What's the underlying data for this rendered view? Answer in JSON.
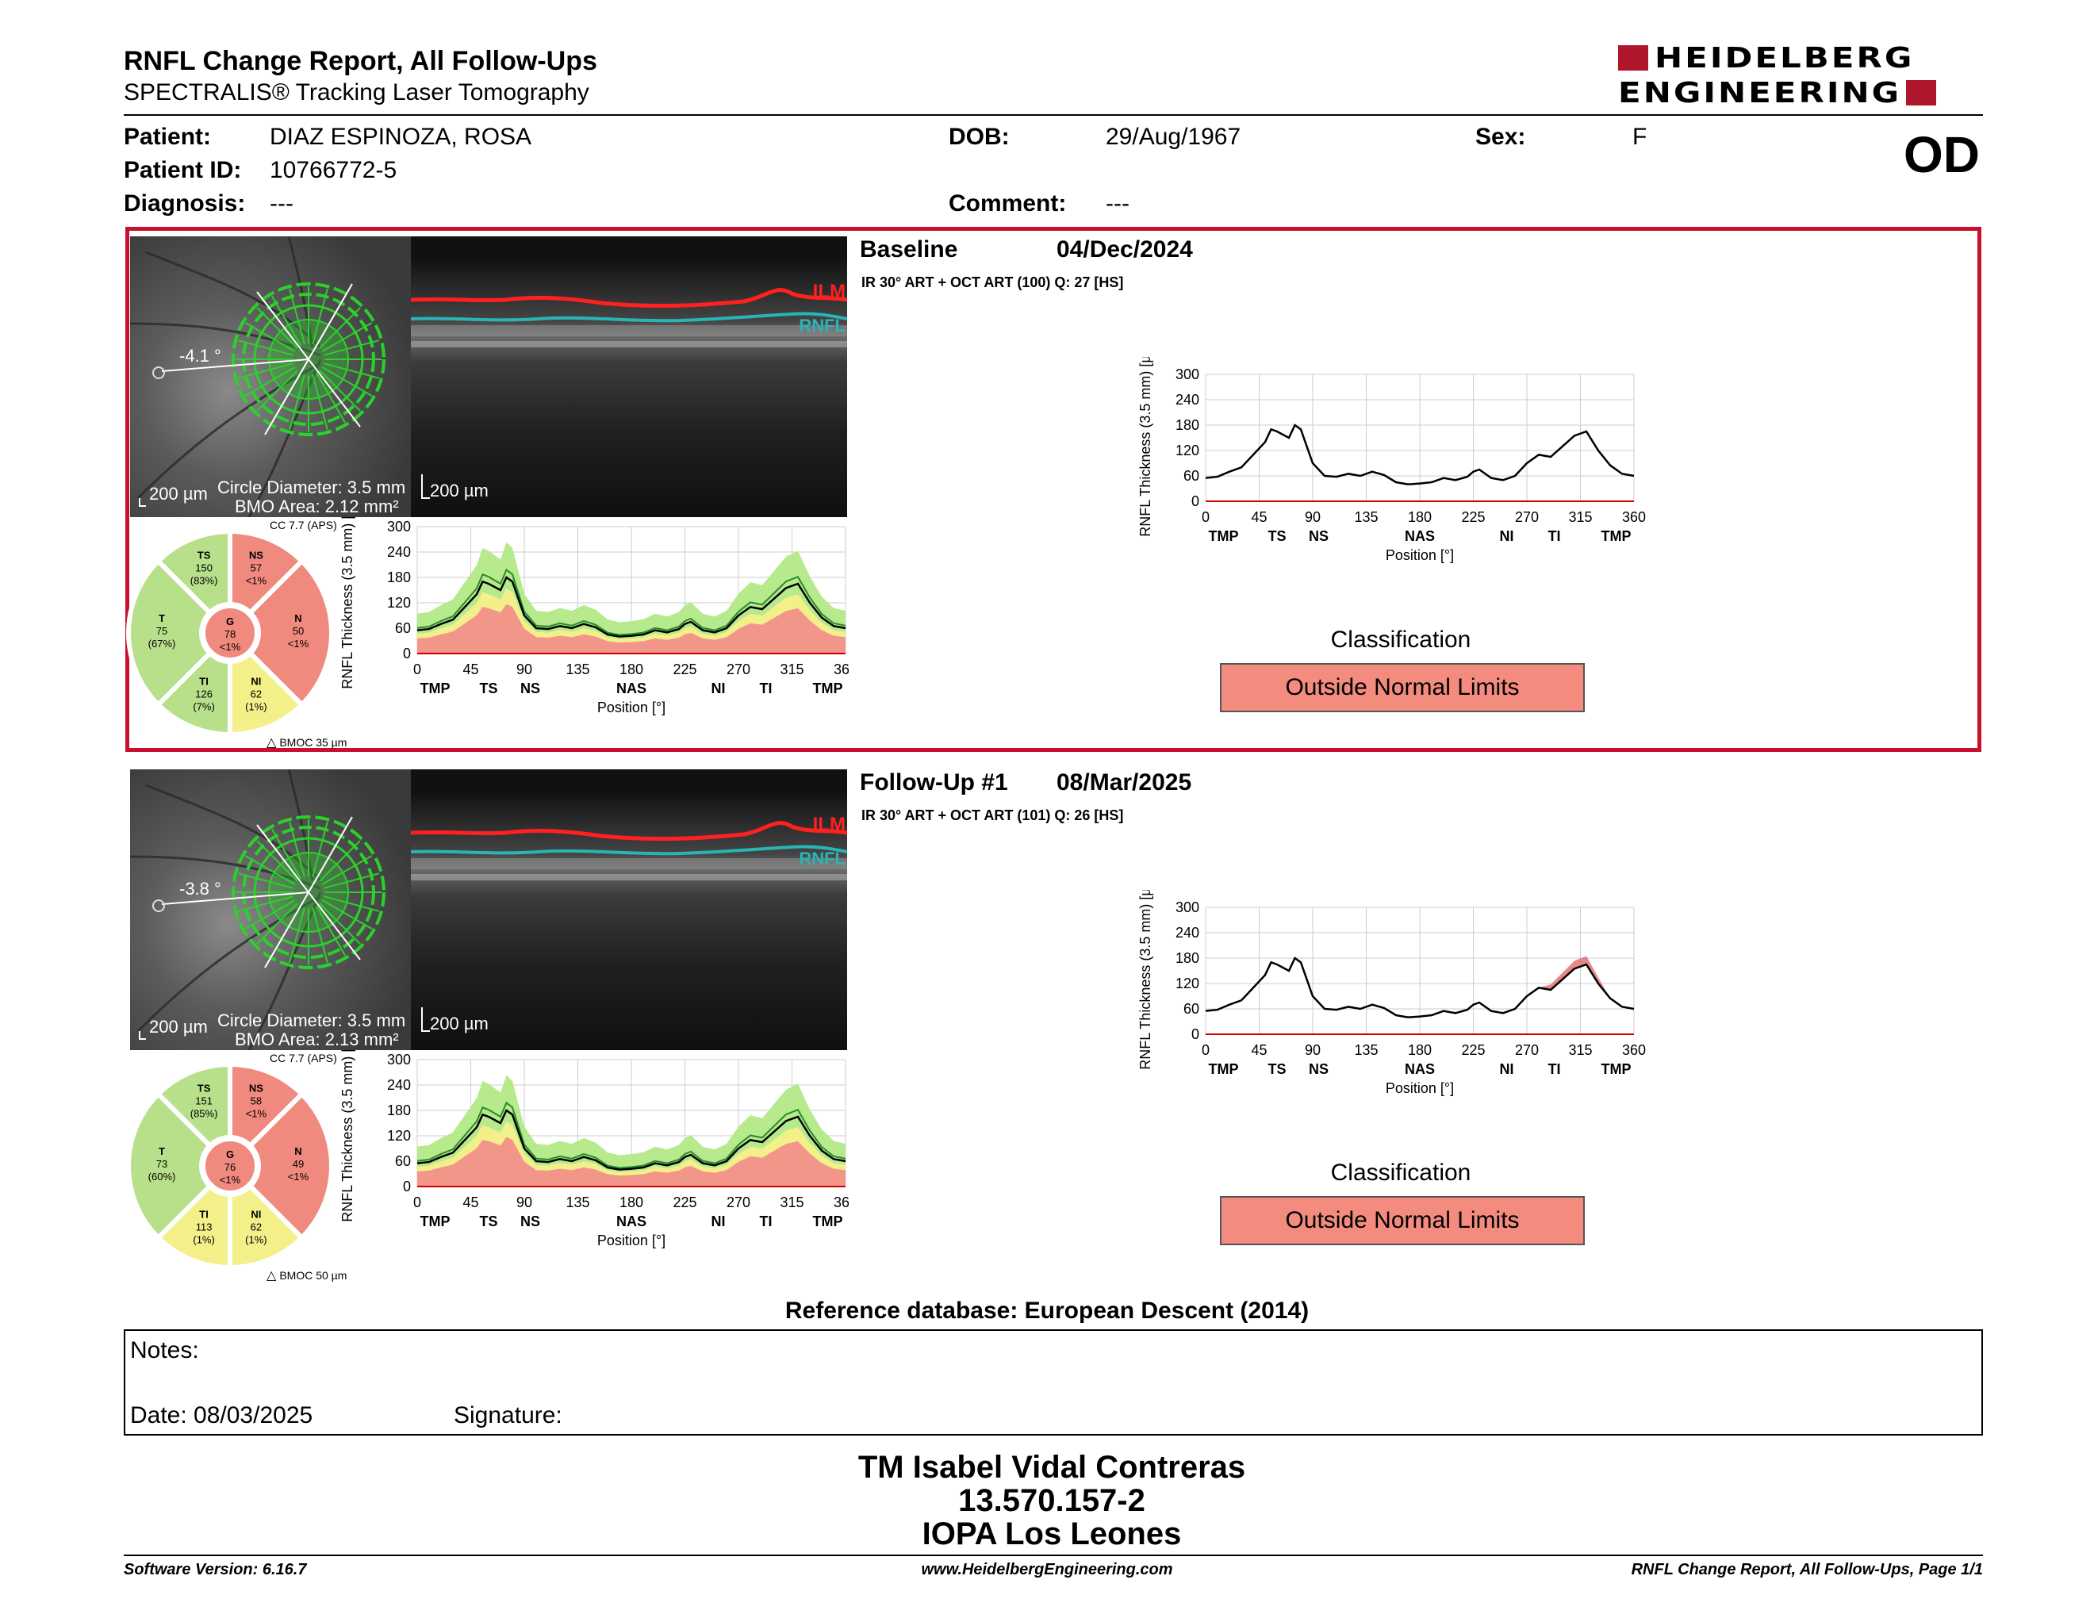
{
  "header": {
    "title": "RNFL Change Report, All Follow-Ups",
    "subtitle": "SPECTRALIS® Tracking Laser Tomography",
    "logo_line1": "HEIDELBERG",
    "logo_line2": "ENGINEERING",
    "eye": "OD"
  },
  "patient": {
    "patient_label": "Patient:",
    "patient_value": "DIAZ ESPINOZA, ROSA",
    "dob_label": "DOB:",
    "dob_value": "29/Aug/1967",
    "sex_label": "Sex:",
    "sex_value": "F",
    "id_label": "Patient ID:",
    "id_value": "10766772-5",
    "diagnosis_label": "Diagnosis:",
    "diagnosis_value": "---",
    "comment_label": "Comment:",
    "comment_value": "---"
  },
  "exams": [
    {
      "name": "Baseline",
      "date": "04/Dec/2024",
      "info": "IR 30° ART + OCT ART (100) Q: 27 [HS]",
      "angle": "-4.1 °",
      "scale_fundus": "200 µm",
      "scale_oct": "200 µm",
      "circle_diameter": "Circle Diameter: 3.5 mm",
      "bmo_area": "BMO Area: 2.12 mm²",
      "cc": "CC 7.7 (APS)",
      "bmoc": "BMOC 35 µm",
      "ilm": "ILM",
      "rnfl": "RNFL",
      "sectors": {
        "TS": {
          "label": "TS",
          "value": "150",
          "pct": "(83%)",
          "color": "#b8e08a"
        },
        "NS": {
          "label": "NS",
          "value": "57",
          "pct": "<1%",
          "color": "#f08a7e"
        },
        "N": {
          "label": "N",
          "value": "50",
          "pct": "<1%",
          "color": "#f08a7e"
        },
        "NI": {
          "label": "NI",
          "value": "62",
          "pct": "(1%)",
          "color": "#f3f08a"
        },
        "TI": {
          "label": "TI",
          "value": "126",
          "pct": "(7%)",
          "color": "#b8e08a"
        },
        "T": {
          "label": "T",
          "value": "75",
          "pct": "(67%)",
          "color": "#b8e08a"
        },
        "G": {
          "label": "G",
          "value": "78",
          "pct": "<1%",
          "color": "#f08a7e"
        }
      },
      "classification_title": "Classification",
      "classification": "Outside Normal Limits"
    },
    {
      "name": "Follow-Up #1",
      "date": "08/Mar/2025",
      "info": "IR 30° ART + OCT ART (101) Q: 26 [HS]",
      "angle": "-3.8 °",
      "scale_fundus": "200 µm",
      "scale_oct": "200 µm",
      "circle_diameter": "Circle Diameter: 3.5 mm",
      "bmo_area": "BMO Area: 2.13 mm²",
      "cc": "CC 7.7 (APS)",
      "bmoc": "BMOC 50 µm",
      "ilm": "ILM",
      "rnfl": "RNFL",
      "sectors": {
        "TS": {
          "label": "TS",
          "value": "151",
          "pct": "(85%)",
          "color": "#b8e08a"
        },
        "NS": {
          "label": "NS",
          "value": "58",
          "pct": "<1%",
          "color": "#f08a7e"
        },
        "N": {
          "label": "N",
          "value": "49",
          "pct": "<1%",
          "color": "#f08a7e"
        },
        "NI": {
          "label": "NI",
          "value": "62",
          "pct": "(1%)",
          "color": "#f3f08a"
        },
        "TI": {
          "label": "TI",
          "value": "113",
          "pct": "(1%)",
          "color": "#f3f08a"
        },
        "T": {
          "label": "T",
          "value": "73",
          "pct": "(60%)",
          "color": "#b8e08a"
        },
        "G": {
          "label": "G",
          "value": "76",
          "pct": "<1%",
          "color": "#f08a7e"
        }
      },
      "classification_title": "Classification",
      "classification": "Outside Normal Limits"
    }
  ],
  "chart_data": [
    {
      "type": "line",
      "ylabel": "RNFL Thickness (3.5 mm) [µm]",
      "xlabel": "Position [°]",
      "xlim": [
        0,
        360
      ],
      "ylim": [
        0,
        300
      ],
      "x_ticks": [
        "0",
        "45",
        "90",
        "135",
        "180",
        "225",
        "270",
        "315",
        "360"
      ],
      "y_ticks": [
        "0",
        "60",
        "120",
        "180",
        "240",
        "300"
      ],
      "sector_labels": [
        "TMP",
        "TS",
        "NS",
        "NAS",
        "NI",
        "TI",
        "TMP"
      ],
      "sector_positions": [
        15,
        60,
        95,
        180,
        253,
        293,
        345
      ],
      "x": [
        0,
        10,
        20,
        30,
        40,
        50,
        55,
        60,
        70,
        75,
        80,
        90,
        100,
        110,
        120,
        130,
        140,
        150,
        160,
        170,
        180,
        190,
        200,
        210,
        220,
        225,
        230,
        240,
        250,
        260,
        270,
        280,
        290,
        300,
        310,
        320,
        330,
        340,
        350,
        360
      ],
      "series": [
        {
          "values": [
            55,
            58,
            70,
            80,
            110,
            140,
            170,
            165,
            150,
            180,
            170,
            90,
            60,
            58,
            65,
            60,
            70,
            62,
            45,
            40,
            42,
            45,
            55,
            50,
            58,
            70,
            75,
            55,
            50,
            60,
            90,
            110,
            105,
            130,
            155,
            165,
            120,
            85,
            65,
            60
          ]
        }
      ]
    }
  ],
  "reference_db": "Reference database: European Descent (2014)",
  "notes": {
    "label": "Notes:",
    "date": "Date: 08/03/2025",
    "signature": "Signature:"
  },
  "signatory": {
    "name": "TM Isabel Vidal Contreras",
    "id": "13.570.157-2",
    "org": "IOPA Los Leones"
  },
  "footer": {
    "software": "Software Version: 6.16.7",
    "url": "www.HeidelbergEngineering.com",
    "page": "RNFL Change Report, All Follow-Ups, Page 1/1"
  }
}
